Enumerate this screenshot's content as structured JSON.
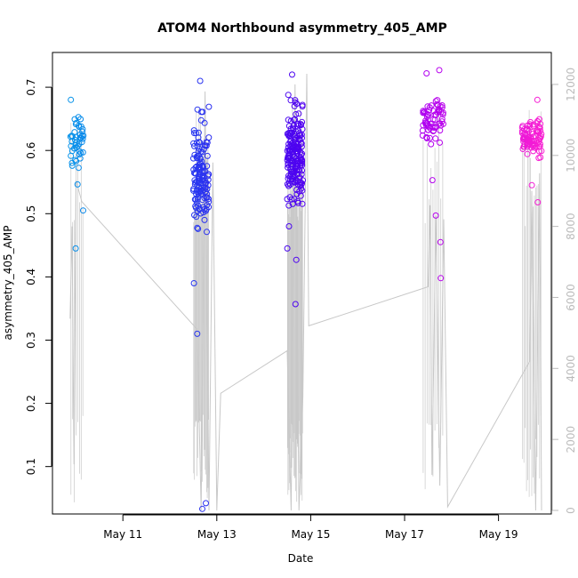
{
  "chart_data": {
    "type": "scatter",
    "title": "ATOM4 Northbound asymmetry_405_AMP",
    "xlabel": "Date",
    "ylabel": "asymmetry_405_AMP",
    "x_axis_type": "date",
    "xlim": [
      "2014-05-09T12:00",
      "2014-05-20T03:00"
    ],
    "ylim": [
      0.025,
      0.755
    ],
    "y2lim": [
      -100,
      12900
    ],
    "x_ticks": [
      {
        "label": "May 11",
        "value": "2014-05-11T00:00"
      },
      {
        "label": "May 13",
        "value": "2014-05-13T00:00"
      },
      {
        "label": "May 15",
        "value": "2014-05-15T00:00"
      },
      {
        "label": "May 17",
        "value": "2014-05-17T00:00"
      },
      {
        "label": "May 19",
        "value": "2014-05-19T00:00"
      }
    ],
    "y_ticks": [
      "0.1",
      "0.2",
      "0.3",
      "0.4",
      "0.5",
      "0.6",
      "0.7"
    ],
    "y2_ticks": [
      "0",
      "2000",
      "4000",
      "6000",
      "8000",
      "10000",
      "12000"
    ],
    "point_color_gradient": [
      "#00a0e8",
      "#2040f0",
      "#5000f0",
      "#b000f0",
      "#ff20d0"
    ],
    "secondary_line_color": "#c8c8c8",
    "axis_color": "#000000",
    "right_axis_color": "#bbbbbb",
    "grid": false,
    "series": [
      {
        "type": "scatter",
        "axis": "left",
        "clusters": [
          {
            "x_start": "2014-05-09T21:00",
            "x_end": "2014-05-10T04:00",
            "n": 45,
            "center": 0.615,
            "spread": 0.05,
            "outliers": [
              0.445,
              0.68,
              0.505
            ]
          },
          {
            "x_start": "2014-05-12T12:00",
            "x_end": "2014-05-12T20:00",
            "n": 140,
            "center": 0.56,
            "spread": 0.075,
            "outliers": [
              0.033,
              0.042,
              0.31,
              0.39,
              0.71
            ]
          },
          {
            "x_start": "2014-05-14T12:00",
            "x_end": "2014-05-14T20:00",
            "n": 190,
            "center": 0.59,
            "spread": 0.06,
            "outliers": [
              0.357,
              0.427,
              0.445,
              0.72,
              0.48
            ]
          },
          {
            "x_start": "2014-05-17T09:00",
            "x_end": "2014-05-17T20:00",
            "n": 65,
            "center": 0.645,
            "spread": 0.03,
            "outliers": [
              0.398,
              0.455,
              0.497,
              0.553,
              0.727,
              0.722
            ]
          },
          {
            "x_start": "2014-05-19T12:00",
            "x_end": "2014-05-19T22:00",
            "n": 90,
            "center": 0.62,
            "spread": 0.025,
            "outliers": [
              0.518,
              0.545,
              0.68
            ]
          }
        ]
      },
      {
        "type": "line",
        "axis": "right",
        "points": [
          {
            "x": "2014-05-09T21:00",
            "y": 5400
          },
          {
            "x": "2014-05-09T22:00",
            "y": 8000
          },
          {
            "x": "2014-05-09T23:00",
            "y": 1300
          },
          {
            "x": "2014-05-10T00:00",
            "y": 9300
          },
          {
            "x": "2014-05-10T03:00",
            "y": 8700
          },
          {
            "x": "2014-05-12T14:00",
            "y": 5100
          },
          {
            "x": "2014-05-12T16:00",
            "y": 0
          },
          {
            "x": "2014-05-12T18:00",
            "y": 11800
          },
          {
            "x": "2014-05-12T20:00",
            "y": 0
          },
          {
            "x": "2014-05-12T22:00",
            "y": 9800
          },
          {
            "x": "2014-05-13T00:00",
            "y": 0
          },
          {
            "x": "2014-05-13T02:00",
            "y": 3300
          },
          {
            "x": "2014-05-14T12:00",
            "y": 4500
          },
          {
            "x": "2014-05-14T14:00",
            "y": 0
          },
          {
            "x": "2014-05-14T16:00",
            "y": 12000
          },
          {
            "x": "2014-05-14T18:00",
            "y": 0
          },
          {
            "x": "2014-05-14T20:00",
            "y": 3200
          },
          {
            "x": "2014-05-14T22:00",
            "y": 12300
          },
          {
            "x": "2014-05-14T23:00",
            "y": 5200
          },
          {
            "x": "2014-05-17T12:00",
            "y": 6300
          },
          {
            "x": "2014-05-17T13:00",
            "y": 8600
          },
          {
            "x": "2014-05-17T14:00",
            "y": 1000
          },
          {
            "x": "2014-05-17T16:00",
            "y": 8300
          },
          {
            "x": "2014-05-17T18:00",
            "y": 700
          },
          {
            "x": "2014-05-17T20:00",
            "y": 8200
          },
          {
            "x": "2014-05-17T22:00",
            "y": 100
          },
          {
            "x": "2014-05-19T16:00",
            "y": 4200
          },
          {
            "x": "2014-05-19T17:00",
            "y": 9000
          },
          {
            "x": "2014-05-19T19:00",
            "y": 0
          },
          {
            "x": "2014-05-19T21:00",
            "y": 9500
          },
          {
            "x": "2014-05-19T22:00",
            "y": 0
          }
        ]
      }
    ]
  }
}
